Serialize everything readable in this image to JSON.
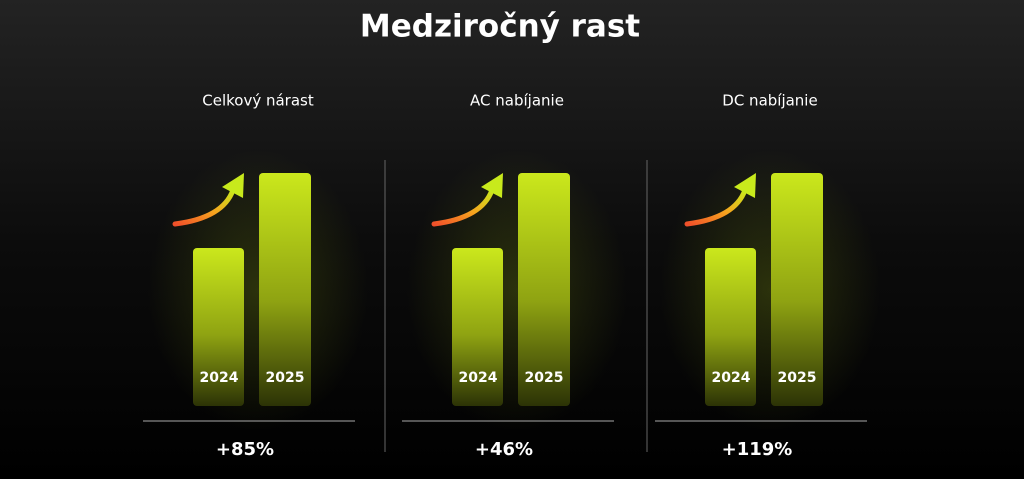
{
  "title": "Medziročný rast",
  "panels": [
    {
      "title": "Celkový nárast",
      "years": [
        "2024",
        "2025"
      ],
      "change": "+85%"
    },
    {
      "title": "AC nabíjanie",
      "years": [
        "2024",
        "2025"
      ],
      "change": "+46%"
    },
    {
      "title": "DC nabíjanie",
      "years": [
        "2024",
        "2025"
      ],
      "change": "+119%"
    }
  ]
}
